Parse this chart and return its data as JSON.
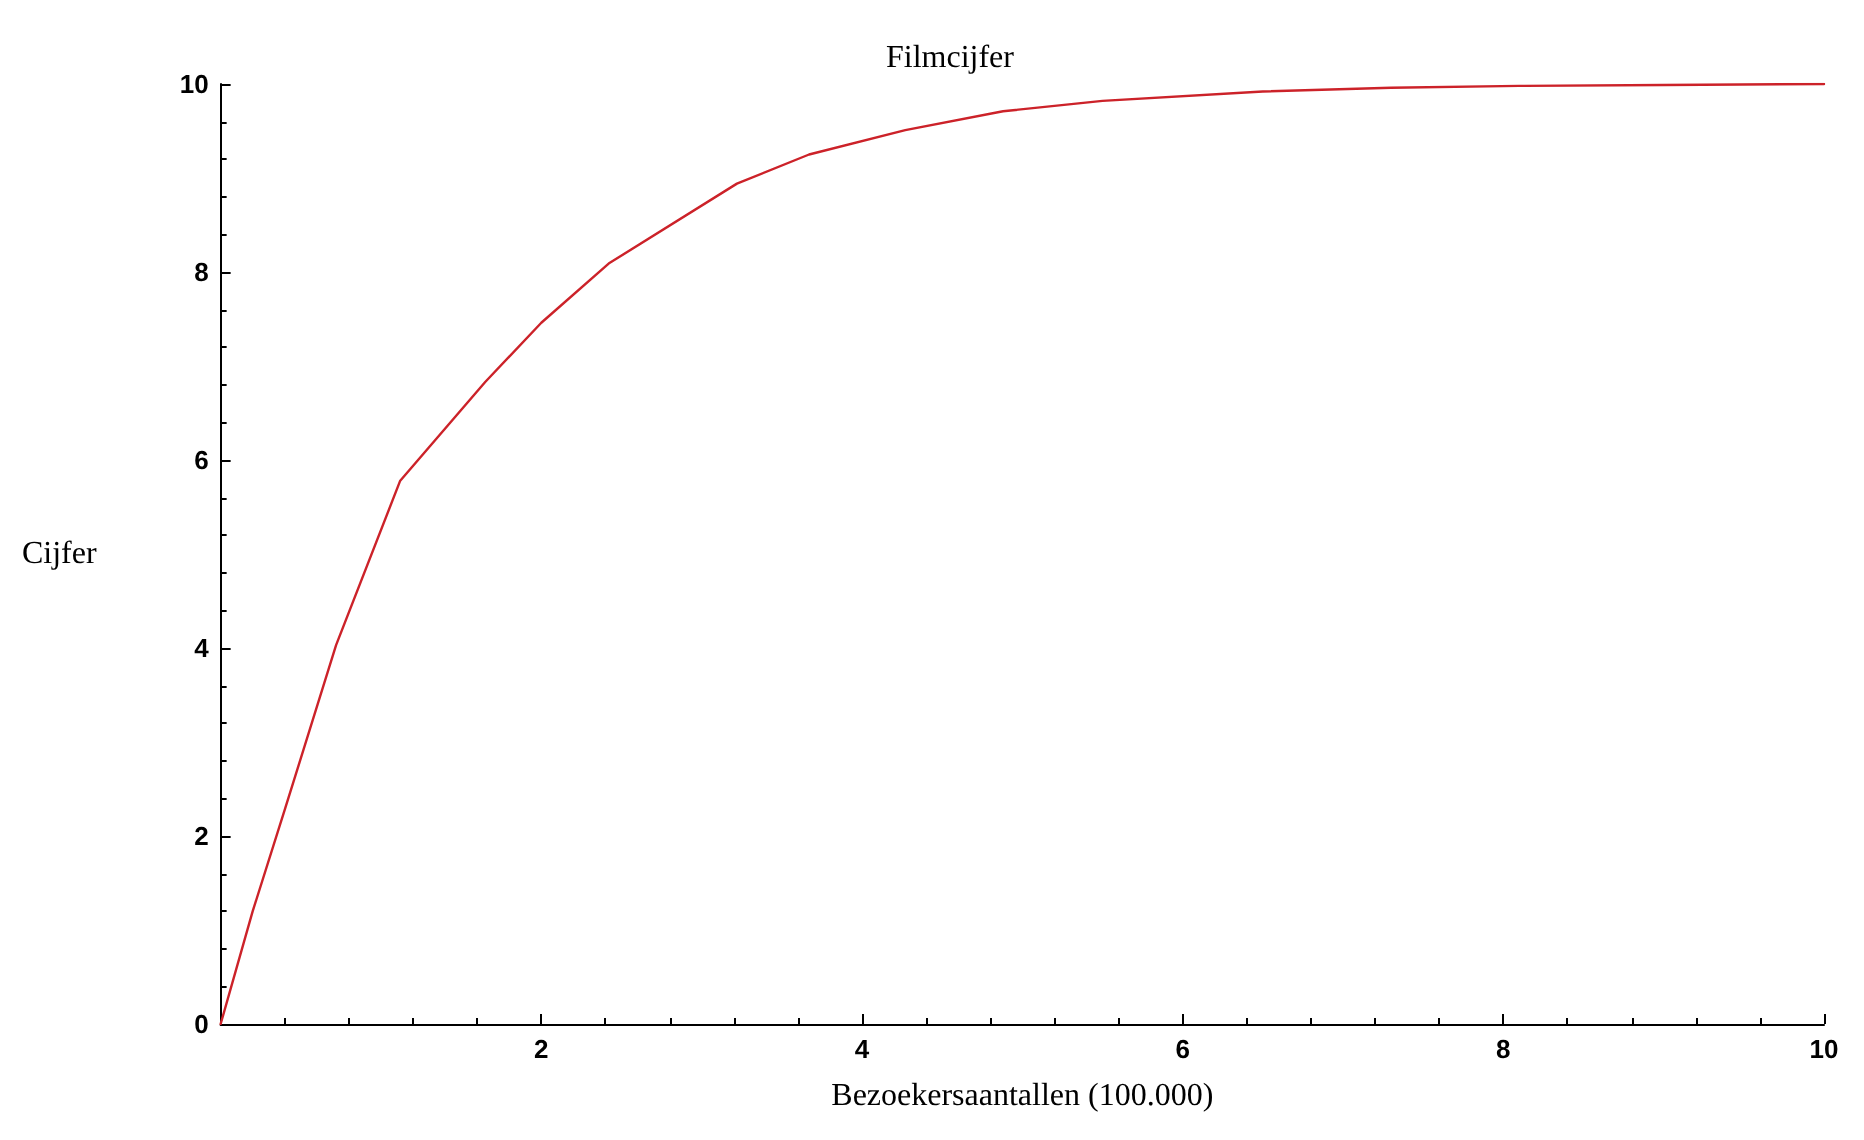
{
  "chart_data": {
    "type": "line",
    "title": "Filmcijfer",
    "xlabel": "Bezoekersaantallen (100.000)",
    "ylabel": "Cijfer",
    "series": [
      {
        "color": "#cc2229",
        "x": [
          0,
          0.2,
          0.4,
          0.72,
          1.12,
          1.65,
          2,
          2.42,
          3.22,
          3.67,
          4.27,
          4.88,
          5.5,
          6.5,
          7.3,
          8.1,
          9,
          10
        ],
        "values": [
          0,
          1.2,
          2.28,
          4.03,
          5.78,
          6.83,
          7.46,
          8.09,
          8.94,
          9.25,
          9.51,
          9.71,
          9.82,
          9.92,
          9.96,
          9.98,
          9.99,
          10
        ]
      }
    ],
    "xlim": [
      0,
      10
    ],
    "ylim": [
      0,
      10
    ],
    "xticks": [
      2,
      4,
      6,
      8,
      10
    ],
    "yticks": [
      0,
      2,
      4,
      6,
      8,
      10
    ],
    "grid": false,
    "marker": "none",
    "line_style": "solid"
  }
}
